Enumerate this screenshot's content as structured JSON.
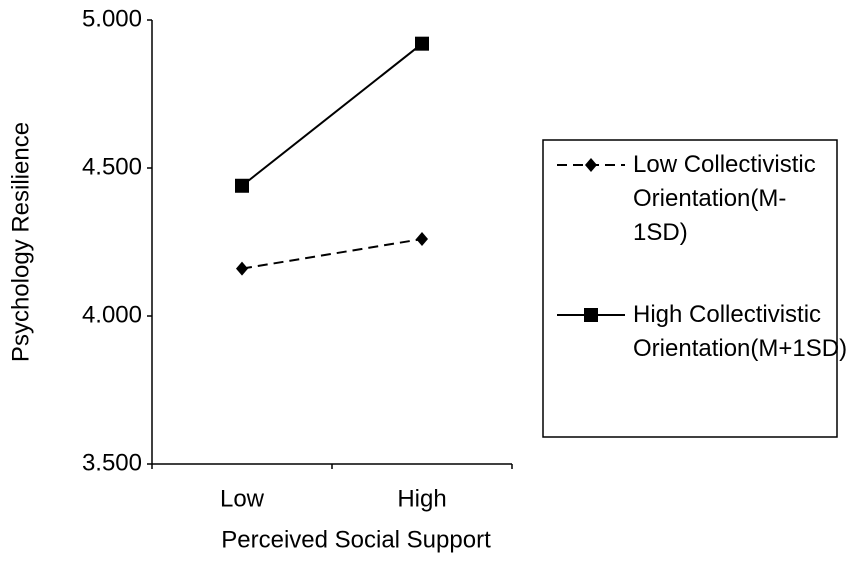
{
  "chart_data": {
    "type": "line",
    "xlabel": "Perceived Social Support",
    "ylabel": "Psychology Resilience",
    "categories": [
      "Low",
      "High"
    ],
    "series": [
      {
        "name": "Low Collectivistic Orientation(M-1SD)",
        "color": "#000000",
        "dash": true,
        "marker": "diamond",
        "values": [
          4.16,
          4.26
        ]
      },
      {
        "name": "High Collectivistic Orientation(M+1SD)",
        "color": "#000000",
        "dash": false,
        "marker": "square",
        "values": [
          4.44,
          4.92
        ]
      }
    ],
    "ylim": [
      3.5,
      5.0
    ],
    "yticks": [
      {
        "value": 3.5,
        "label": "3.500"
      },
      {
        "value": 4.0,
        "label": "4.000"
      },
      {
        "value": 4.5,
        "label": "4.500"
      },
      {
        "value": 5.0,
        "label": "5.000"
      }
    ],
    "legend": "right"
  }
}
